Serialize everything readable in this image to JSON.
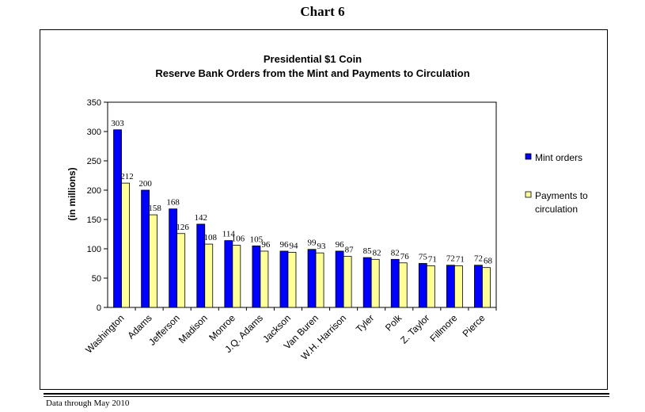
{
  "page": {
    "title": "Chart 6",
    "footnote": "Data through May 2010"
  },
  "chart_data": {
    "type": "bar",
    "title": "Presidential $1 Coin",
    "subtitle": "Reserve Bank Orders from the Mint and Payments to Circulation",
    "xlabel": "",
    "ylabel": "(in millions)",
    "ylim": [
      0,
      350
    ],
    "yticks": [
      0,
      50,
      100,
      150,
      200,
      250,
      300,
      350
    ],
    "grid": false,
    "legend_position": "right",
    "categories": [
      "Washington",
      "Adams",
      "Jefferson",
      "Madison",
      "Monroe",
      "J.Q. Adams",
      "Jackson",
      "Van Buren",
      "W.H. Harrison",
      "Tyler",
      "Polk",
      "Z. Taylor",
      "Fillmore",
      "Pierce"
    ],
    "series": [
      {
        "name": "Mint orders",
        "color": "#0000ff",
        "values": [
          303,
          200,
          168,
          142,
          114,
          105,
          96,
          99,
          96,
          85,
          82,
          75,
          72,
          72
        ]
      },
      {
        "name": "Payments to circulation",
        "legend_lines": [
          "Payments to",
          "circulation"
        ],
        "color": "#ffff99",
        "values": [
          212,
          158,
          126,
          108,
          106,
          96,
          94,
          93,
          87,
          82,
          76,
          71,
          71,
          68
        ]
      }
    ]
  }
}
